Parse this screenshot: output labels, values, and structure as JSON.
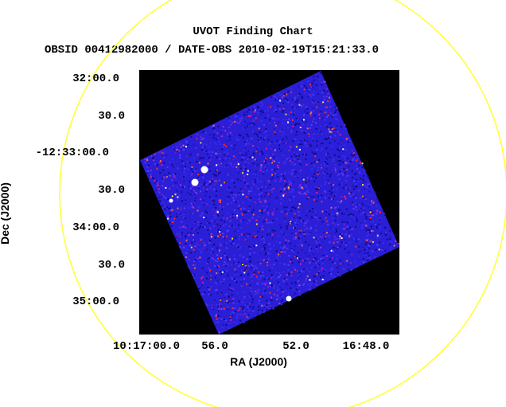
{
  "header": {
    "title": "UVOT Finding Chart",
    "subtitle": "OBSID 00412982000 / DATE-OBS 2010-02-19T15:21:33.0"
  },
  "axes": {
    "xlabel": "RA (J2000)",
    "ylabel": "Dec (J2000)",
    "xticks": [
      "10:17:00.0",
      "56.0",
      "52.0",
      "16:48.0"
    ],
    "yticks": [
      "32:00.0",
      "30.0",
      "-12:33:00.0",
      "30.0",
      "34:00.0",
      "30.0",
      "35:00.0"
    ]
  },
  "colors": {
    "background_frame": "#000000",
    "image_base": "#2a1fd6",
    "circle": "#ffff33",
    "hot_pixel": "#ff2a2a",
    "star": "#ffffff"
  }
}
